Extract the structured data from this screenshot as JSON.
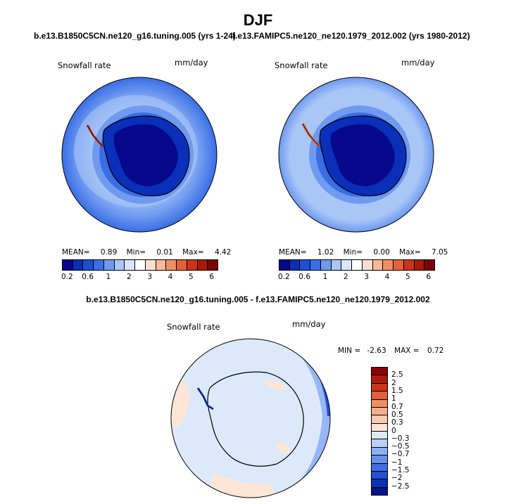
{
  "title": "DJF",
  "panels": {
    "left": {
      "subtitle": "b.e13.B1850C5CN.ne120_g16.tuning.005 (yrs 1-24)",
      "variable": "Snowfall rate",
      "units": "mm/day",
      "stats": {
        "mean_label": "MEAN=",
        "mean": "0.89",
        "min_label": "Min=",
        "min": "0.01",
        "max_label": "Max=",
        "max": "4.42"
      }
    },
    "right": {
      "subtitle": "f.e13.FAMIPC5.ne120_ne120.1979_2012.002 (yrs 1980-2012)",
      "variable": "Snowfall rate",
      "units": "mm/day",
      "stats": {
        "mean_label": "MEAN=",
        "mean": "1.02",
        "min_label": "Min=",
        "min": "0.00",
        "max_label": "Max=",
        "max": "7.05"
      }
    },
    "diff": {
      "subtitle": "b.e13.B1850C5CN.ne120_g16.tuning.005 - f.e13.FAMIPC5.ne120_ne120.1979_2012.002",
      "variable": "Snowfall rate",
      "units": "mm/day",
      "stats": {
        "min_label": "MIN =",
        "min": "-2.63",
        "max_label": "MAX =",
        "max": "0.72"
      }
    }
  },
  "colorbar_horizontal": {
    "colors": [
      "#08088c",
      "#0a2fb8",
      "#1f4fd8",
      "#3a6ee6",
      "#6f9af0",
      "#a9c6f7",
      "#d8e6fb",
      "#ffffff",
      "#fbe0cf",
      "#f7b999",
      "#f08f65",
      "#e3603a",
      "#cc3318",
      "#aa1a08",
      "#7a0600"
    ],
    "ticks": [
      "0.2",
      "0.6",
      "1",
      "2",
      "3",
      "4",
      "5",
      "6"
    ]
  },
  "colorbar_vertical": {
    "colors": [
      "#8b0000",
      "#b01a0a",
      "#cc3318",
      "#e3603a",
      "#f08f65",
      "#f5ae8c",
      "#f9cbb0",
      "#fde6d6",
      "#dce9fb",
      "#b8d0f7",
      "#8fb0f2",
      "#6690ea",
      "#3f6fe2",
      "#2250d4",
      "#0c30b4",
      "#03138a"
    ],
    "ticks": [
      "2.5",
      "2",
      "1.5",
      "1",
      "0.7",
      "0.5",
      "0.3",
      "0",
      "−0.3",
      "−0.5",
      "−0.7",
      "−1",
      "−1.5",
      "−2",
      "−2.5"
    ]
  }
}
